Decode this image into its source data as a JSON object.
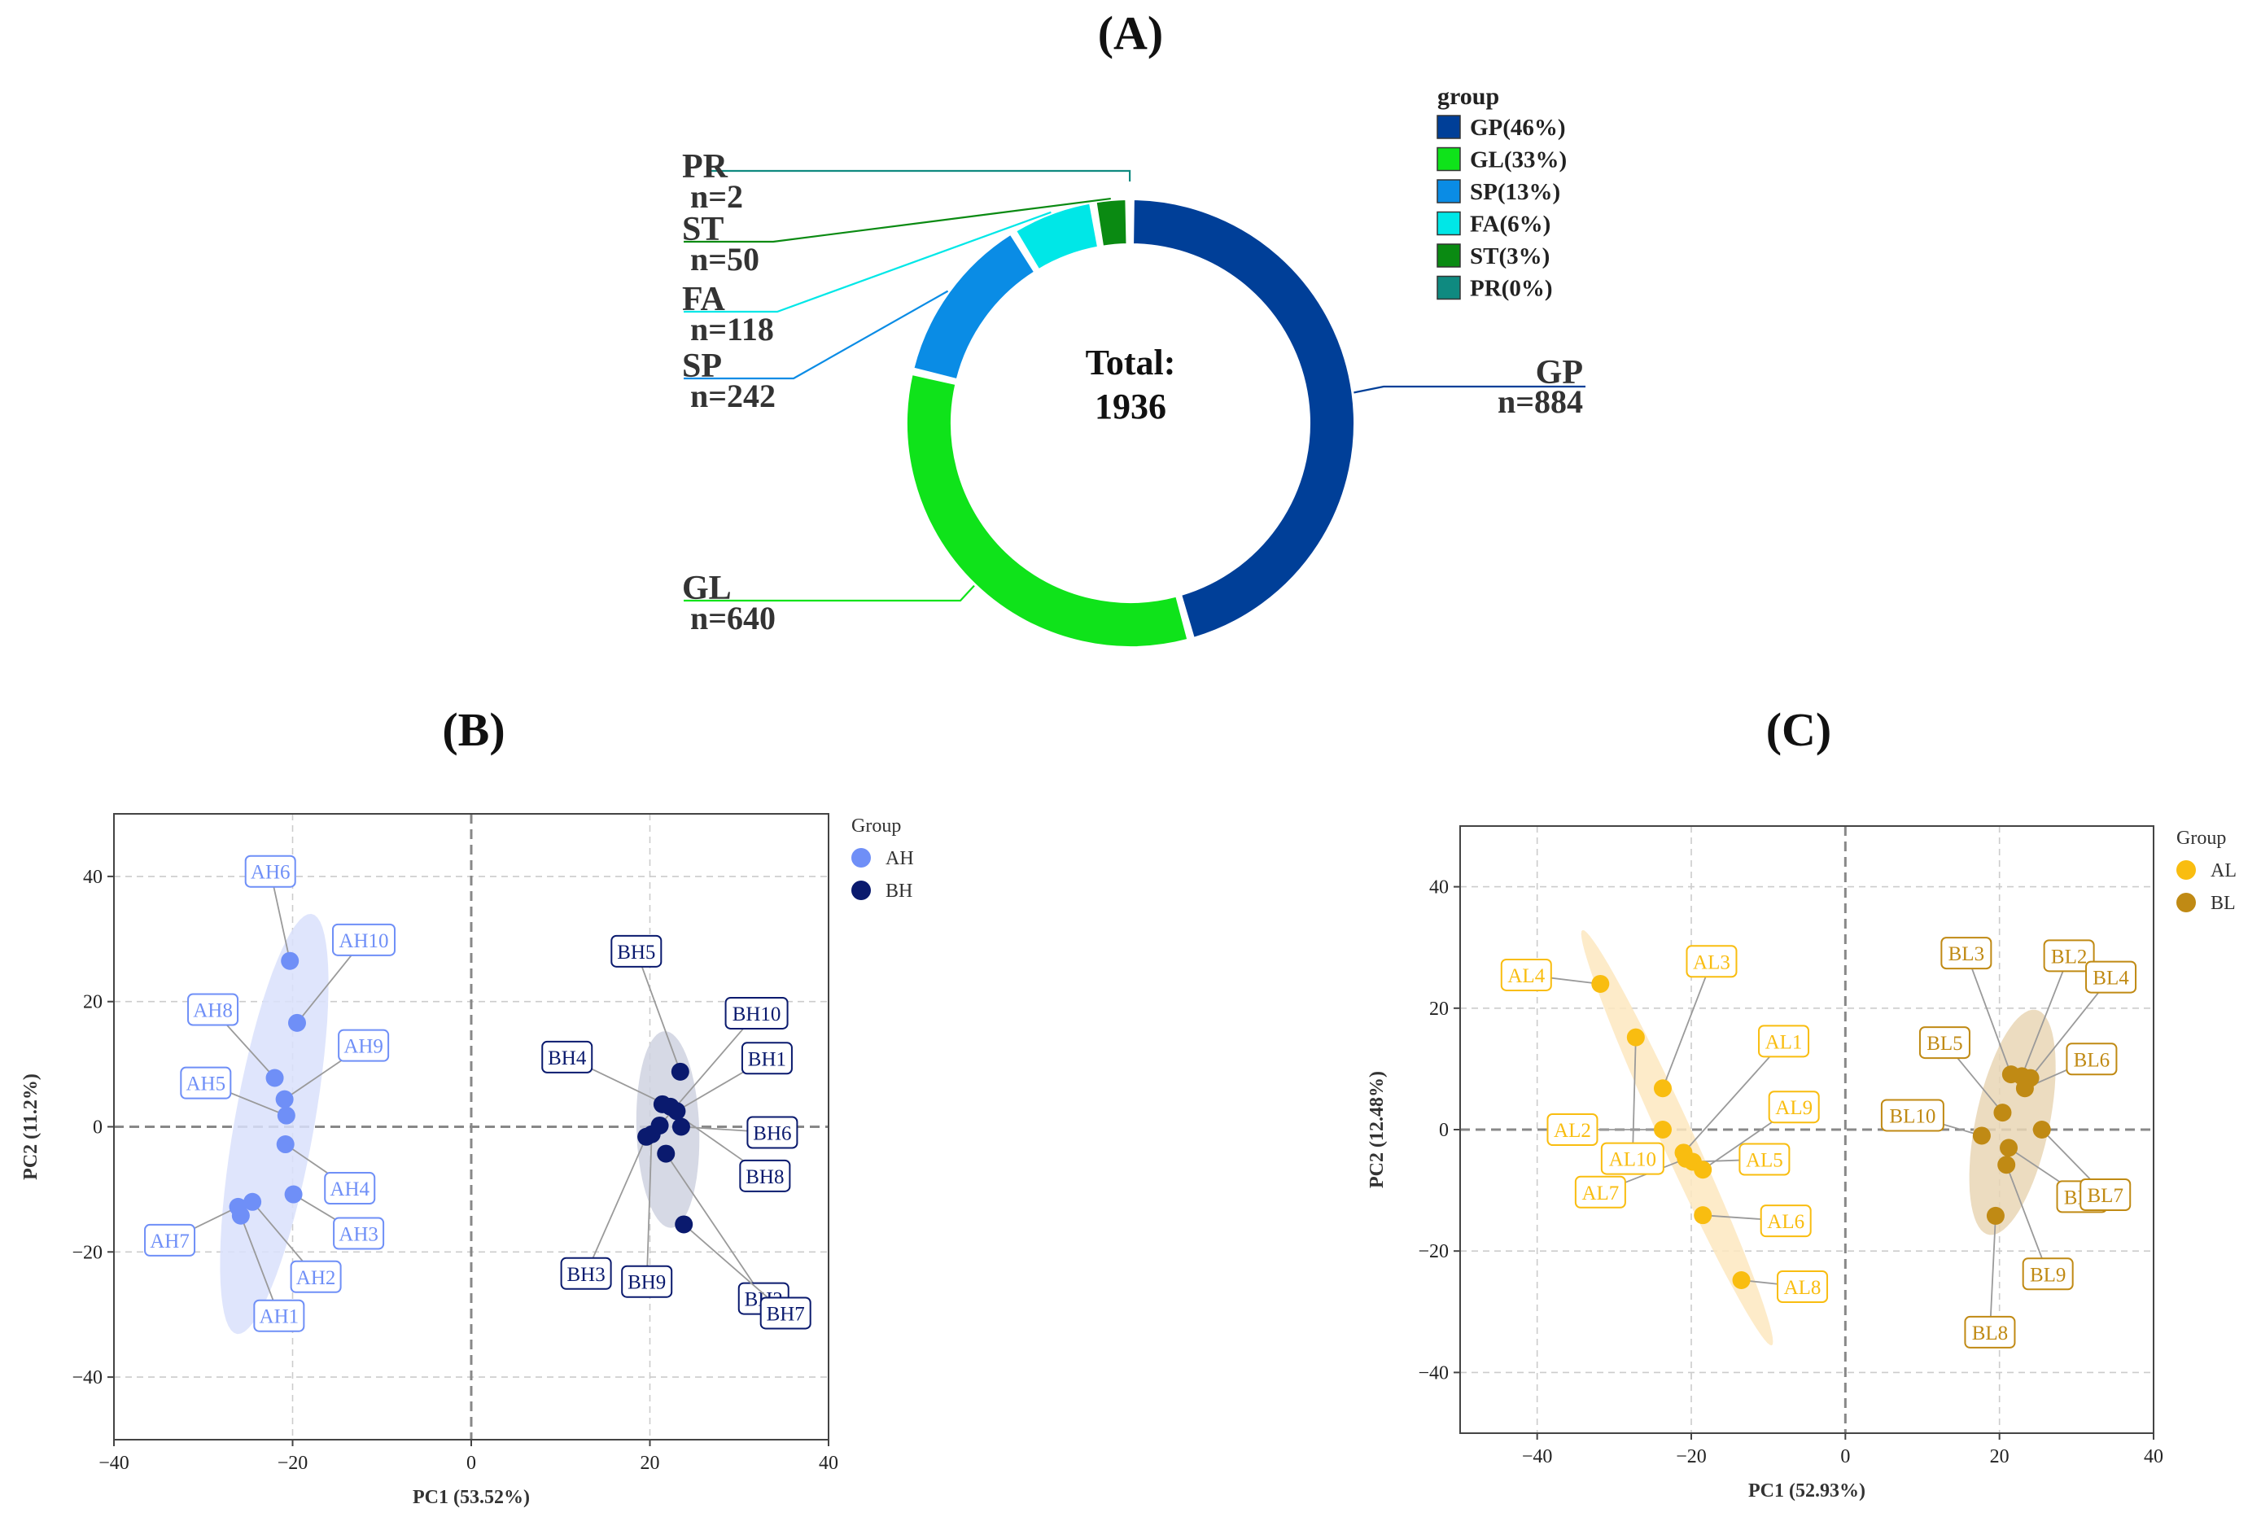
{
  "chart_data": [
    {
      "panel_label": "(A)",
      "type": "pie",
      "donut": true,
      "center_text": [
        "Total:",
        "1936"
      ],
      "legend_title": "group",
      "legend_placement": "top-right",
      "slices": [
        {
          "name": "GP",
          "value": 884,
          "n_label": "n=884",
          "legend": "GP(46%)",
          "color": "#003f98"
        },
        {
          "name": "GL",
          "value": 640,
          "n_label": "n=640",
          "legend": "GL(33%)",
          "color": "#0fe31a"
        },
        {
          "name": "SP",
          "value": 242,
          "n_label": "n=242",
          "legend": "SP(13%)",
          "color": "#0a8ce5"
        },
        {
          "name": "FA",
          "value": 118,
          "n_label": "n=118",
          "legend": "FA(6%)",
          "color": "#00e7e7"
        },
        {
          "name": "ST",
          "value": 50,
          "n_label": "n=50",
          "legend": "ST(3%)",
          "color": "#0a8a12"
        },
        {
          "name": "PR",
          "value": 2,
          "n_label": "n=2",
          "legend": "PR(0%)",
          "color": "#0f8a80"
        }
      ]
    },
    {
      "panel_label": "(B)",
      "type": "scatter",
      "xlabel": "PC1 (53.52%)",
      "ylabel": "PC2 (11.2%)",
      "xlim": [
        -40,
        40
      ],
      "ylim": [
        -50,
        50
      ],
      "xticks": [
        -40,
        -20,
        0,
        20,
        40
      ],
      "yticks": [
        -40,
        -20,
        0,
        20,
        40
      ],
      "grid": true,
      "legend_title": "Group",
      "legend_placement": "right",
      "series": [
        {
          "name": "AH",
          "color": "#6f8ff7",
          "ellipse_color": "#d9e1fb",
          "points": [
            {
              "label": "AH1",
              "x": -25.8,
              "y": -14.2
            },
            {
              "label": "AH2",
              "x": -24.5,
              "y": -12.0
            },
            {
              "label": "AH3",
              "x": -19.9,
              "y": -10.8
            },
            {
              "label": "AH4",
              "x": -20.8,
              "y": -2.8
            },
            {
              "label": "AH5",
              "x": -20.7,
              "y": 1.8
            },
            {
              "label": "AH6",
              "x": -20.3,
              "y": 26.5
            },
            {
              "label": "AH7",
              "x": -26.1,
              "y": -12.8
            },
            {
              "label": "AH8",
              "x": -22.0,
              "y": 7.8
            },
            {
              "label": "AH9",
              "x": -20.9,
              "y": 4.4
            },
            {
              "label": "AH10",
              "x": -19.5,
              "y": 16.6
            }
          ]
        },
        {
          "name": "BH",
          "color": "#0a1a6e",
          "ellipse_color": "#cfd2e1",
          "points": [
            {
              "label": "BH1",
              "x": 23.0,
              "y": 2.5
            },
            {
              "label": "BH2",
              "x": 21.8,
              "y": -4.3
            },
            {
              "label": "BH3",
              "x": 19.6,
              "y": -1.6
            },
            {
              "label": "BH4",
              "x": 22.3,
              "y": 3.2
            },
            {
              "label": "BH5",
              "x": 23.4,
              "y": 8.8
            },
            {
              "label": "BH6",
              "x": 23.5,
              "y": 0.0
            },
            {
              "label": "BH7",
              "x": 23.8,
              "y": -15.6
            },
            {
              "label": "BH8",
              "x": 21.4,
              "y": 3.6
            },
            {
              "label": "BH9",
              "x": 20.2,
              "y": -1.2
            },
            {
              "label": "BH10",
              "x": 21.1,
              "y": 0.2
            }
          ]
        }
      ]
    },
    {
      "panel_label": "(C)",
      "type": "scatter",
      "xlabel": "PC1 (52.93%)",
      "ylabel": "PC2 (12.48%)",
      "xlim": [
        -50,
        40
      ],
      "ylim": [
        -50,
        50
      ],
      "xticks": [
        -40,
        -20,
        0,
        20,
        40
      ],
      "yticks": [
        -40,
        -20,
        0,
        20,
        40
      ],
      "grid": true,
      "legend_title": "Group",
      "legend_placement": "right",
      "series": [
        {
          "name": "AL",
          "color": "#f9bd10",
          "ellipse_color": "#fde7bf",
          "points": [
            {
              "label": "AL1",
              "x": -21.0,
              "y": -3.8
            },
            {
              "label": "AL2",
              "x": -23.7,
              "y": 0.0
            },
            {
              "label": "AL3",
              "x": -23.7,
              "y": 6.8
            },
            {
              "label": "AL4",
              "x": -31.8,
              "y": 24.0
            },
            {
              "label": "AL5",
              "x": -19.8,
              "y": -5.3
            },
            {
              "label": "AL6",
              "x": -18.5,
              "y": -14.1
            },
            {
              "label": "AL7",
              "x": -20.7,
              "y": -4.8
            },
            {
              "label": "AL8",
              "x": -13.5,
              "y": -24.8
            },
            {
              "label": "AL9",
              "x": -18.5,
              "y": -6.6
            },
            {
              "label": "AL10",
              "x": -27.2,
              "y": 15.2
            }
          ]
        },
        {
          "name": "BL",
          "color": "#c08a14",
          "ellipse_color": "#e9d6b5",
          "points": [
            {
              "label": "BL1",
              "x": 21.2,
              "y": -3.0
            },
            {
              "label": "BL2",
              "x": 22.9,
              "y": 8.8
            },
            {
              "label": "BL3",
              "x": 21.5,
              "y": 9.1
            },
            {
              "label": "BL4",
              "x": 24.0,
              "y": 8.5
            },
            {
              "label": "BL5",
              "x": 20.4,
              "y": 2.8
            },
            {
              "label": "BL6",
              "x": 23.3,
              "y": 6.8
            },
            {
              "label": "BL7",
              "x": 25.5,
              "y": 0.0
            },
            {
              "label": "BL8",
              "x": 19.5,
              "y": -14.2
            },
            {
              "label": "BL9",
              "x": 20.9,
              "y": -5.8
            },
            {
              "label": "BL10",
              "x": 17.7,
              "y": -1.0
            }
          ]
        }
      ]
    }
  ]
}
